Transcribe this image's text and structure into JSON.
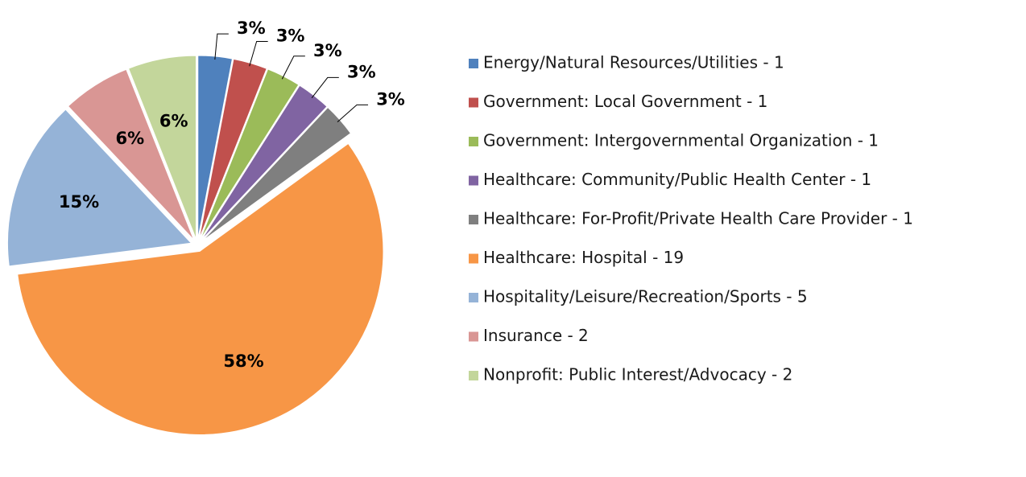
{
  "chart_data": {
    "type": "pie",
    "categories": [
      "Energy/Natural Resources/Utilities - 1",
      "Government: Local Government - 1",
      "Government: Intergovernmental Organization - 1",
      "Healthcare: Community/Public Health Center - 1",
      "Healthcare: For-Profit/Private Health Care Provider - 1",
      "Healthcare: Hospital - 19",
      "Hospitality/Leisure/Recreation/Sports - 5",
      "Insurance - 2",
      "Nonprofit: Public Interest/Advocacy - 2"
    ],
    "values": [
      3,
      3,
      3,
      3,
      3,
      58,
      15,
      6,
      6
    ],
    "value_labels": [
      "3%",
      "3%",
      "3%",
      "3%",
      "3%",
      "58%",
      "15%",
      "6%",
      "6%"
    ],
    "colors": [
      "#4f81bd",
      "#c0504d",
      "#9bbb59",
      "#8064a2",
      "#7f7f7f",
      "#f79646",
      "#95b3d7",
      "#d99694",
      "#c3d69b"
    ],
    "legend": "right"
  }
}
